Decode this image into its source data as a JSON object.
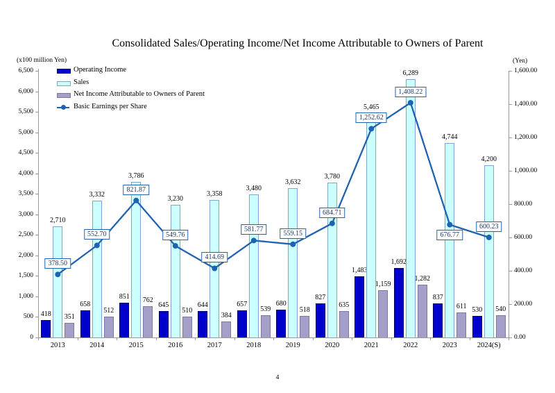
{
  "page": {
    "page_number": "4"
  },
  "chart_data": {
    "type": "combo-bar-line",
    "title": "Consolidated Sales/Operating Income/Net Income Attributable to Owners of Parent",
    "grid": "off",
    "legend_position": "top-left-inside",
    "left_axis": {
      "label": "(x100 million Yen)",
      "min": 0,
      "max": 6500,
      "step": 500
    },
    "right_axis": {
      "label": "(Yen)",
      "min": 0,
      "max": 1600,
      "step": 200
    },
    "categories": [
      "2013",
      "2014",
      "2015",
      "2016",
      "2017",
      "2018",
      "2019",
      "2020",
      "2021",
      "2022",
      "2023",
      "2024(S)"
    ],
    "series": [
      {
        "name": "Operating Income",
        "type": "bar",
        "axis": "left",
        "color": "#0000CC",
        "border_color": "#000066",
        "values": [
          418,
          658,
          851,
          645,
          644,
          657,
          680,
          827,
          1483,
          1692,
          837,
          530
        ]
      },
      {
        "name": "Sales",
        "type": "bar",
        "axis": "left",
        "color": "#CCFFFF",
        "border_color": "#7EA6CE",
        "values": [
          2710,
          3332,
          3786,
          3230,
          3358,
          3480,
          3632,
          3780,
          5465,
          6289,
          4744,
          4200
        ]
      },
      {
        "name": "Net Income Attributable to Owners of Parent",
        "type": "bar",
        "axis": "left",
        "color": "#A39FC9",
        "border_color": "#7A7AA0",
        "values": [
          351,
          512,
          762,
          510,
          384,
          539,
          518,
          635,
          1159,
          1282,
          611,
          540
        ]
      },
      {
        "name": "Basic Earnings per Share",
        "type": "line",
        "axis": "right",
        "color": "#1F63B0",
        "label_text_color": "#1F3864",
        "values": [
          378.5,
          552.7,
          821.87,
          549.76,
          414.69,
          581.77,
          559.15,
          684.71,
          1252.62,
          1408.22,
          676.77,
          600.23
        ],
        "label_sides": [
          "above",
          "above",
          "above",
          "above",
          "above",
          "above",
          "above",
          "above",
          "above",
          "above",
          "below",
          "above"
        ]
      }
    ]
  }
}
